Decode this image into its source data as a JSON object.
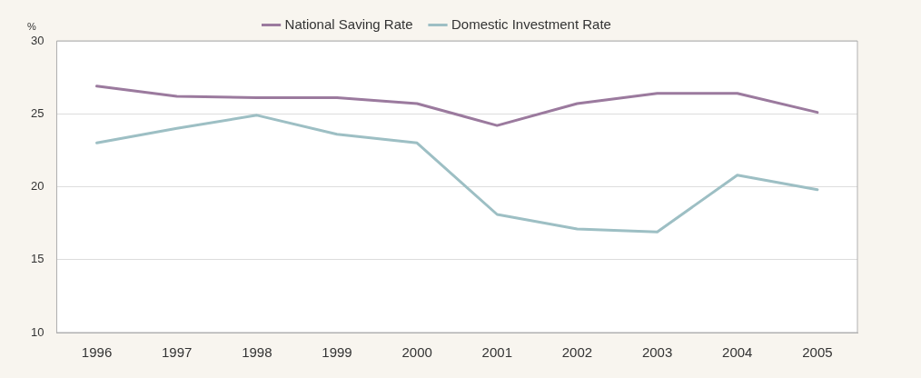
{
  "chart_data": {
    "type": "line",
    "ylabel": "%",
    "categories": [
      "1996",
      "1997",
      "1998",
      "1999",
      "2000",
      "2001",
      "2002",
      "2003",
      "2004",
      "2005"
    ],
    "series": [
      {
        "name": "National Saving Rate",
        "color": "#9b7a9e",
        "values": [
          26.9,
          26.2,
          26.1,
          26.1,
          25.7,
          24.2,
          25.7,
          26.4,
          26.4,
          25.1
        ]
      },
      {
        "name": "Domestic Investment Rate",
        "color": "#9dbfc4",
        "values": [
          23.0,
          24.0,
          24.9,
          23.6,
          23.0,
          18.1,
          17.1,
          16.9,
          20.8,
          19.8
        ]
      }
    ],
    "ylim": [
      10,
      30
    ],
    "yticks": [
      10,
      15,
      20,
      25,
      30
    ],
    "grid": "y",
    "legend": "top",
    "marker": "none",
    "line_style": "solid"
  }
}
